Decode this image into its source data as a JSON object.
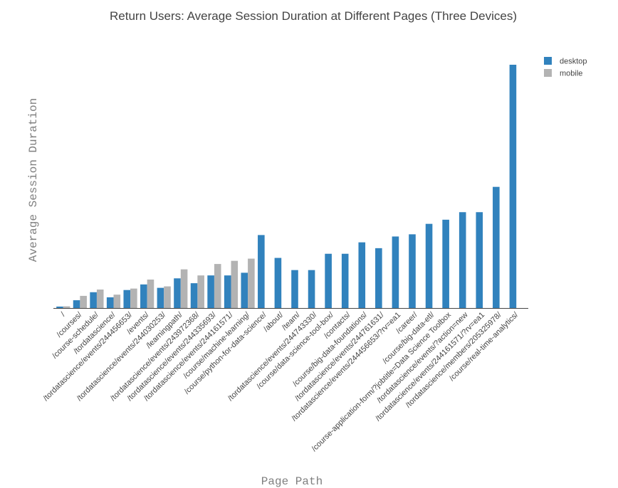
{
  "chart_data": {
    "type": "bar",
    "title": "Return Users: Average Session Duration at Different Pages (Three Devices)",
    "xlabel": "Page Path",
    "ylabel": "Average Session Duration",
    "ylim": [
      0,
      100
    ],
    "grid": false,
    "legend_position": "top-right",
    "categories": [
      "/",
      "/courses/",
      "/course-schedule/",
      "/tordatascience/",
      "/tordatascience/events/244456653/",
      "/events/",
      "/tordatascience/events/244030253/",
      "/learningpath/",
      "/tordatascience/events/243972368/",
      "/tordatascience/events/244335693/",
      "/tordatascience/events/244161571/",
      "/course/machine-learning/",
      "/course/python-for-data-science/",
      "/about/",
      "/team/",
      "/tordatascience/events/244743330/",
      "/course/data-science-tool-box/",
      "/contacts/",
      "/course/big-data-foundations/",
      "/tordatascience/events/244761631/",
      "/tordatascience/events/244456653/?rv=ea1",
      "/career/",
      "/course/big-data-etl/",
      "/course-application-form/?jobtitle=Data Science Toolbox",
      "/tordatascience/events/?action=new",
      "/tordatascience/events/244161571/?rv=ea1",
      "/tordatascience/members/205325978/",
      "/course/real-time-analytics/"
    ],
    "series": [
      {
        "name": "desktop",
        "color": "#3182bd",
        "values": [
          0.6,
          3.2,
          6.5,
          4.4,
          7.4,
          9.7,
          8.3,
          12.2,
          10.2,
          13.4,
          13.4,
          14.5,
          30.0,
          20.6,
          15.6,
          15.6,
          22.3,
          22.3,
          27.0,
          24.6,
          29.4,
          30.3,
          34.6,
          36.3,
          39.4,
          39.4,
          49.8,
          100.0
        ]
      },
      {
        "name": "mobile",
        "color": "#b3b3b3",
        "values": [
          0.7,
          5.0,
          7.6,
          5.5,
          8.0,
          11.7,
          8.9,
          15.9,
          13.4,
          18.1,
          19.4,
          20.3,
          null,
          null,
          null,
          null,
          null,
          null,
          null,
          null,
          null,
          null,
          null,
          null,
          null,
          null,
          null,
          null
        ]
      }
    ]
  }
}
